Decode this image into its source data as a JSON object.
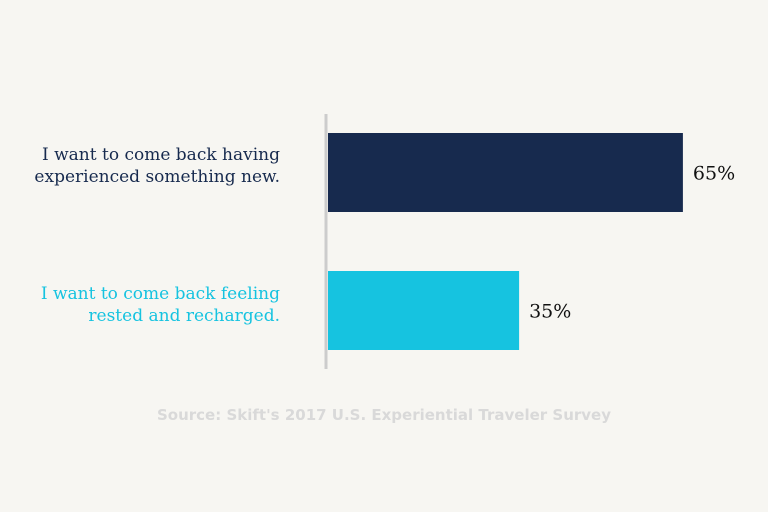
{
  "chart_data": {
    "type": "bar",
    "orientation": "horizontal",
    "categories": [
      "I want to come back having\nexperienced something new.",
      "I want to come back feeling\nrested and recharged."
    ],
    "values": [
      65,
      35
    ],
    "value_labels": [
      "65%",
      "35%"
    ],
    "colors": [
      "#172a4e",
      "#16c3e0"
    ],
    "xlim": [
      0,
      100
    ],
    "grid": false,
    "axis_color": "#cccccc"
  },
  "source": {
    "text": "Source: Skift's 2017 U.S. Experiential Traveler Survey",
    "color": "#d9d9d9"
  }
}
